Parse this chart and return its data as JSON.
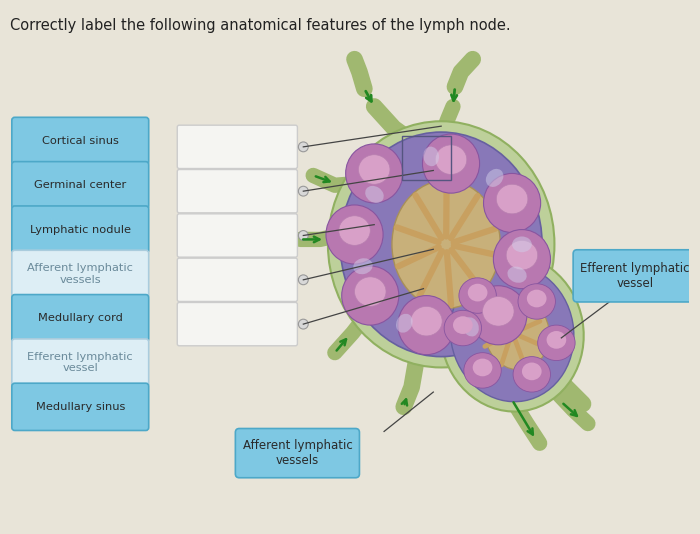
{
  "title": "Correctly label the following anatomical features of the lymph node.",
  "title_fontsize": 10.5,
  "background_color": "#e8e4d8",
  "left_buttons": [
    {
      "label": "Cortical sinus",
      "active": true
    },
    {
      "label": "Germinal center",
      "active": true
    },
    {
      "label": "Lymphatic nodule",
      "active": true
    },
    {
      "label": "Afferent lymphatic\nvessels",
      "active": false
    },
    {
      "label": "Medullary cord",
      "active": true
    },
    {
      "label": "Efferent lymphatic\nvessel",
      "active": false
    },
    {
      "label": "Medullary sinus",
      "active": true
    }
  ],
  "button_color_active": "#7ec8e3",
  "button_color_inactive": "#ddeef5",
  "button_border_active": "#4da8c8",
  "button_border_inactive": "#aaccdd",
  "button_text_active": "#2a2a2a",
  "button_text_inactive": "#6a8a9a",
  "box_color": "#f5f5f2",
  "box_border": "#cccccc",
  "right_label_text": "Efferent lymphatic\nvessel",
  "bottom_label_text": "Afferent lymphatic\nvessels",
  "line_color": "#444444",
  "node_bg": "#7b6faa",
  "node_cortex": "#6b62a0",
  "node_outer": "#b8cc8a",
  "node_medulla": "#d4b87a",
  "nodule_color": "#c080b8",
  "nodule_inner": "#d8a0cc",
  "vessel_color": "#a0b870",
  "vessel_tip": "#228822"
}
